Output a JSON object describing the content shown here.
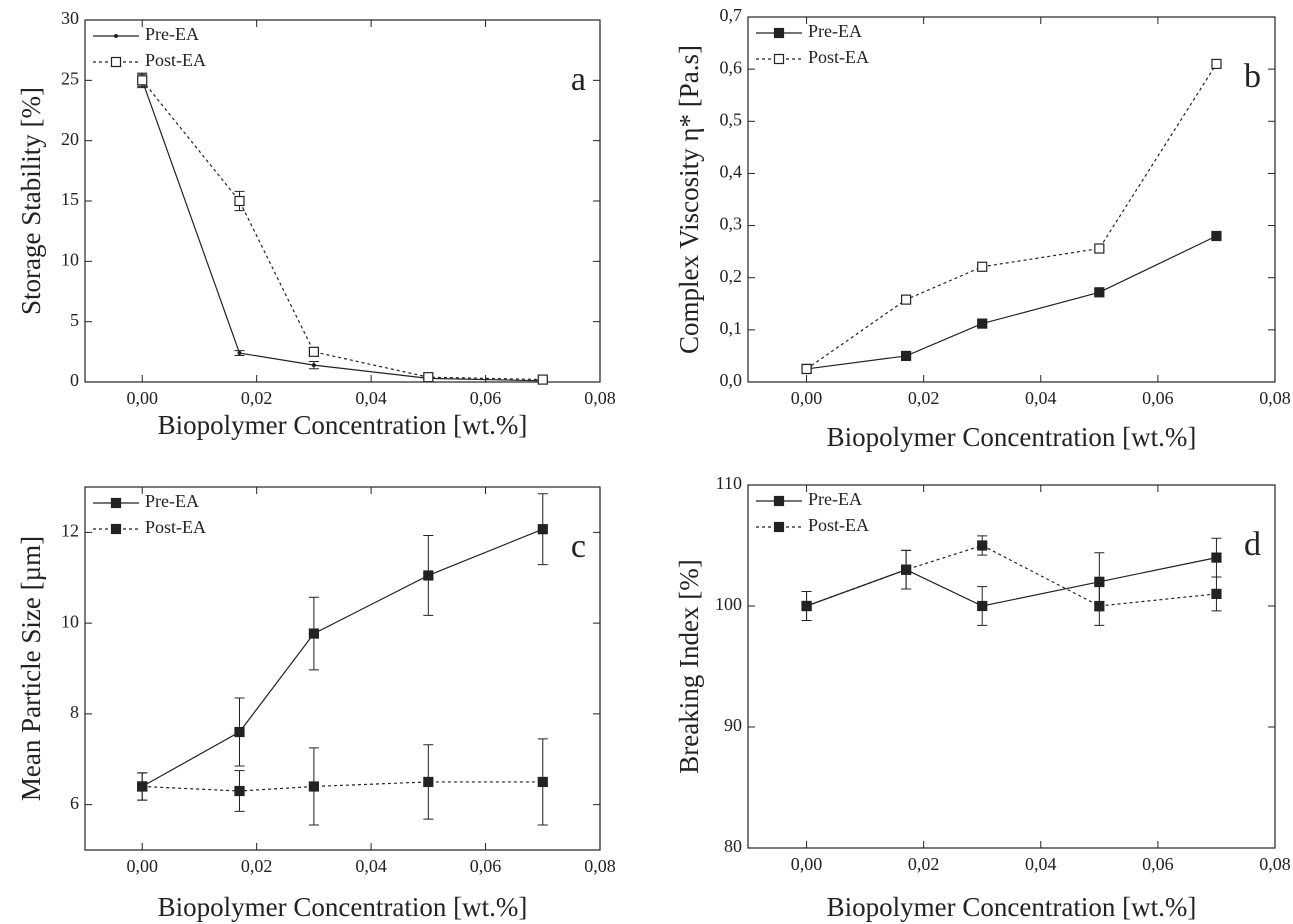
{
  "chart_data": [
    {
      "type": "line",
      "xlabel": "Biopolymer Concentration [wt.%]",
      "ylabel": "Storage Stability [%]",
      "annotation": "a",
      "legend": "upper left",
      "x": [
        0,
        0.017,
        0.03,
        0.05,
        0.07
      ],
      "xlim": [
        -0.01,
        0.08
      ],
      "xticks": [
        {
          "value": 0,
          "label": "0,00"
        },
        {
          "value": 0.02,
          "label": "0,02"
        },
        {
          "value": 0.04,
          "label": "0,04"
        },
        {
          "value": 0.06,
          "label": "0,06"
        },
        {
          "value": 0.08,
          "label": "0,08"
        }
      ],
      "ylim": [
        0,
        30
      ],
      "yticks": [
        0,
        5,
        10,
        15,
        20,
        25,
        30
      ],
      "series": [
        {
          "name": "Pre-EA",
          "color": "#222222",
          "line_style": "solid",
          "marker": "dot",
          "values": [
            25,
            2.4,
            1.4,
            0.3,
            0.1
          ],
          "errors": [
            0.5,
            0.2,
            0.3,
            0.1,
            0.1
          ]
        },
        {
          "name": "Post-EA",
          "color": "#222222",
          "line_style": "dotted",
          "marker": "open-square",
          "values": [
            25,
            15,
            2.5,
            0.4,
            0.2
          ],
          "errors": [
            0.6,
            0.8,
            0.3,
            0.1,
            0.1
          ]
        }
      ]
    },
    {
      "type": "line",
      "xlabel": "Biopolymer Concentration [wt.%]",
      "ylabel": "Complex Viscosity η* [Pa.s]",
      "annotation": "b",
      "legend": "upper left",
      "x": [
        0,
        0.017,
        0.03,
        0.05,
        0.07
      ],
      "xlim": [
        -0.01,
        0.08
      ],
      "xticks": [
        {
          "value": 0,
          "label": "0,00"
        },
        {
          "value": 0.02,
          "label": "0,02"
        },
        {
          "value": 0.04,
          "label": "0,04"
        },
        {
          "value": 0.06,
          "label": "0,06"
        },
        {
          "value": 0.08,
          "label": "0,08"
        }
      ],
      "ylim": [
        0,
        0.7
      ],
      "yticks": [
        {
          "value": 0,
          "label": "0,0"
        },
        {
          "value": 0.1,
          "label": "0,1"
        },
        {
          "value": 0.2,
          "label": "0,2"
        },
        {
          "value": 0.3,
          "label": "0,3"
        },
        {
          "value": 0.4,
          "label": "0,4"
        },
        {
          "value": 0.5,
          "label": "0,5"
        },
        {
          "value": 0.6,
          "label": "0,6"
        },
        {
          "value": 0.7,
          "label": "0,7"
        }
      ],
      "series": [
        {
          "name": "Pre-EA",
          "color": "#222222",
          "line_style": "solid",
          "marker": "filled-square",
          "values": [
            0.025,
            0.05,
            0.112,
            0.172,
            0.28
          ]
        },
        {
          "name": "Post-EA",
          "color": "#222222",
          "line_style": "dotted",
          "marker": "open-square",
          "values": [
            0.025,
            0.158,
            0.221,
            0.256,
            0.61
          ]
        }
      ]
    },
    {
      "type": "line",
      "xlabel": "Biopolymer Concentration [wt.%]",
      "ylabel": "Mean Particle Size [µm]",
      "annotation": "c",
      "legend": "upper left",
      "x": [
        0,
        0.017,
        0.03,
        0.05,
        0.07
      ],
      "xlim": [
        -0.01,
        0.08
      ],
      "xticks": [
        {
          "value": 0,
          "label": "0,00"
        },
        {
          "value": 0.02,
          "label": "0,02"
        },
        {
          "value": 0.04,
          "label": "0,04"
        },
        {
          "value": 0.06,
          "label": "0,06"
        },
        {
          "value": 0.08,
          "label": "0,08"
        }
      ],
      "ylim": [
        5,
        13
      ],
      "yticks": [
        6,
        8,
        10,
        12
      ],
      "series": [
        {
          "name": "Pre-EA",
          "color": "#222222",
          "line_style": "solid",
          "marker": "filled-square",
          "values": [
            6.4,
            7.6,
            9.77,
            11.05,
            12.07
          ],
          "errors": [
            0.3,
            0.75,
            0.8,
            0.88,
            0.78
          ]
        },
        {
          "name": "Post-EA",
          "color": "#222222",
          "line_style": "dotted",
          "marker": "filled-square",
          "values": [
            6.4,
            6.3,
            6.4,
            6.5,
            6.5
          ],
          "errors": [
            0.3,
            0.45,
            0.85,
            0.82,
            0.95
          ]
        }
      ]
    },
    {
      "type": "line",
      "xlabel": "Biopolymer Concentration [wt.%]",
      "ylabel": "Breaking Index [%]",
      "annotation": "d",
      "legend": "upper left",
      "x": [
        0,
        0.017,
        0.03,
        0.05,
        0.07
      ],
      "xlim": [
        -0.01,
        0.08
      ],
      "xticks": [
        {
          "value": 0,
          "label": "0,00"
        },
        {
          "value": 0.02,
          "label": "0,02"
        },
        {
          "value": 0.04,
          "label": "0,04"
        },
        {
          "value": 0.06,
          "label": "0,06"
        },
        {
          "value": 0.08,
          "label": "0,08"
        }
      ],
      "ylim": [
        80,
        110
      ],
      "yticks": [
        80,
        90,
        100,
        110
      ],
      "series": [
        {
          "name": "Pre-EA",
          "color": "#222222",
          "line_style": "solid",
          "marker": "filled-square",
          "values": [
            100,
            103,
            100,
            102,
            104
          ],
          "errors": [
            1.2,
            1.6,
            1.6,
            2.4,
            1.6
          ]
        },
        {
          "name": "Post-EA",
          "color": "#222222",
          "line_style": "dotted",
          "marker": "filled-square",
          "values": [
            100,
            103,
            105,
            100,
            101
          ],
          "errors": [
            1.2,
            1.6,
            0.8,
            1.6,
            1.4
          ]
        }
      ]
    }
  ]
}
